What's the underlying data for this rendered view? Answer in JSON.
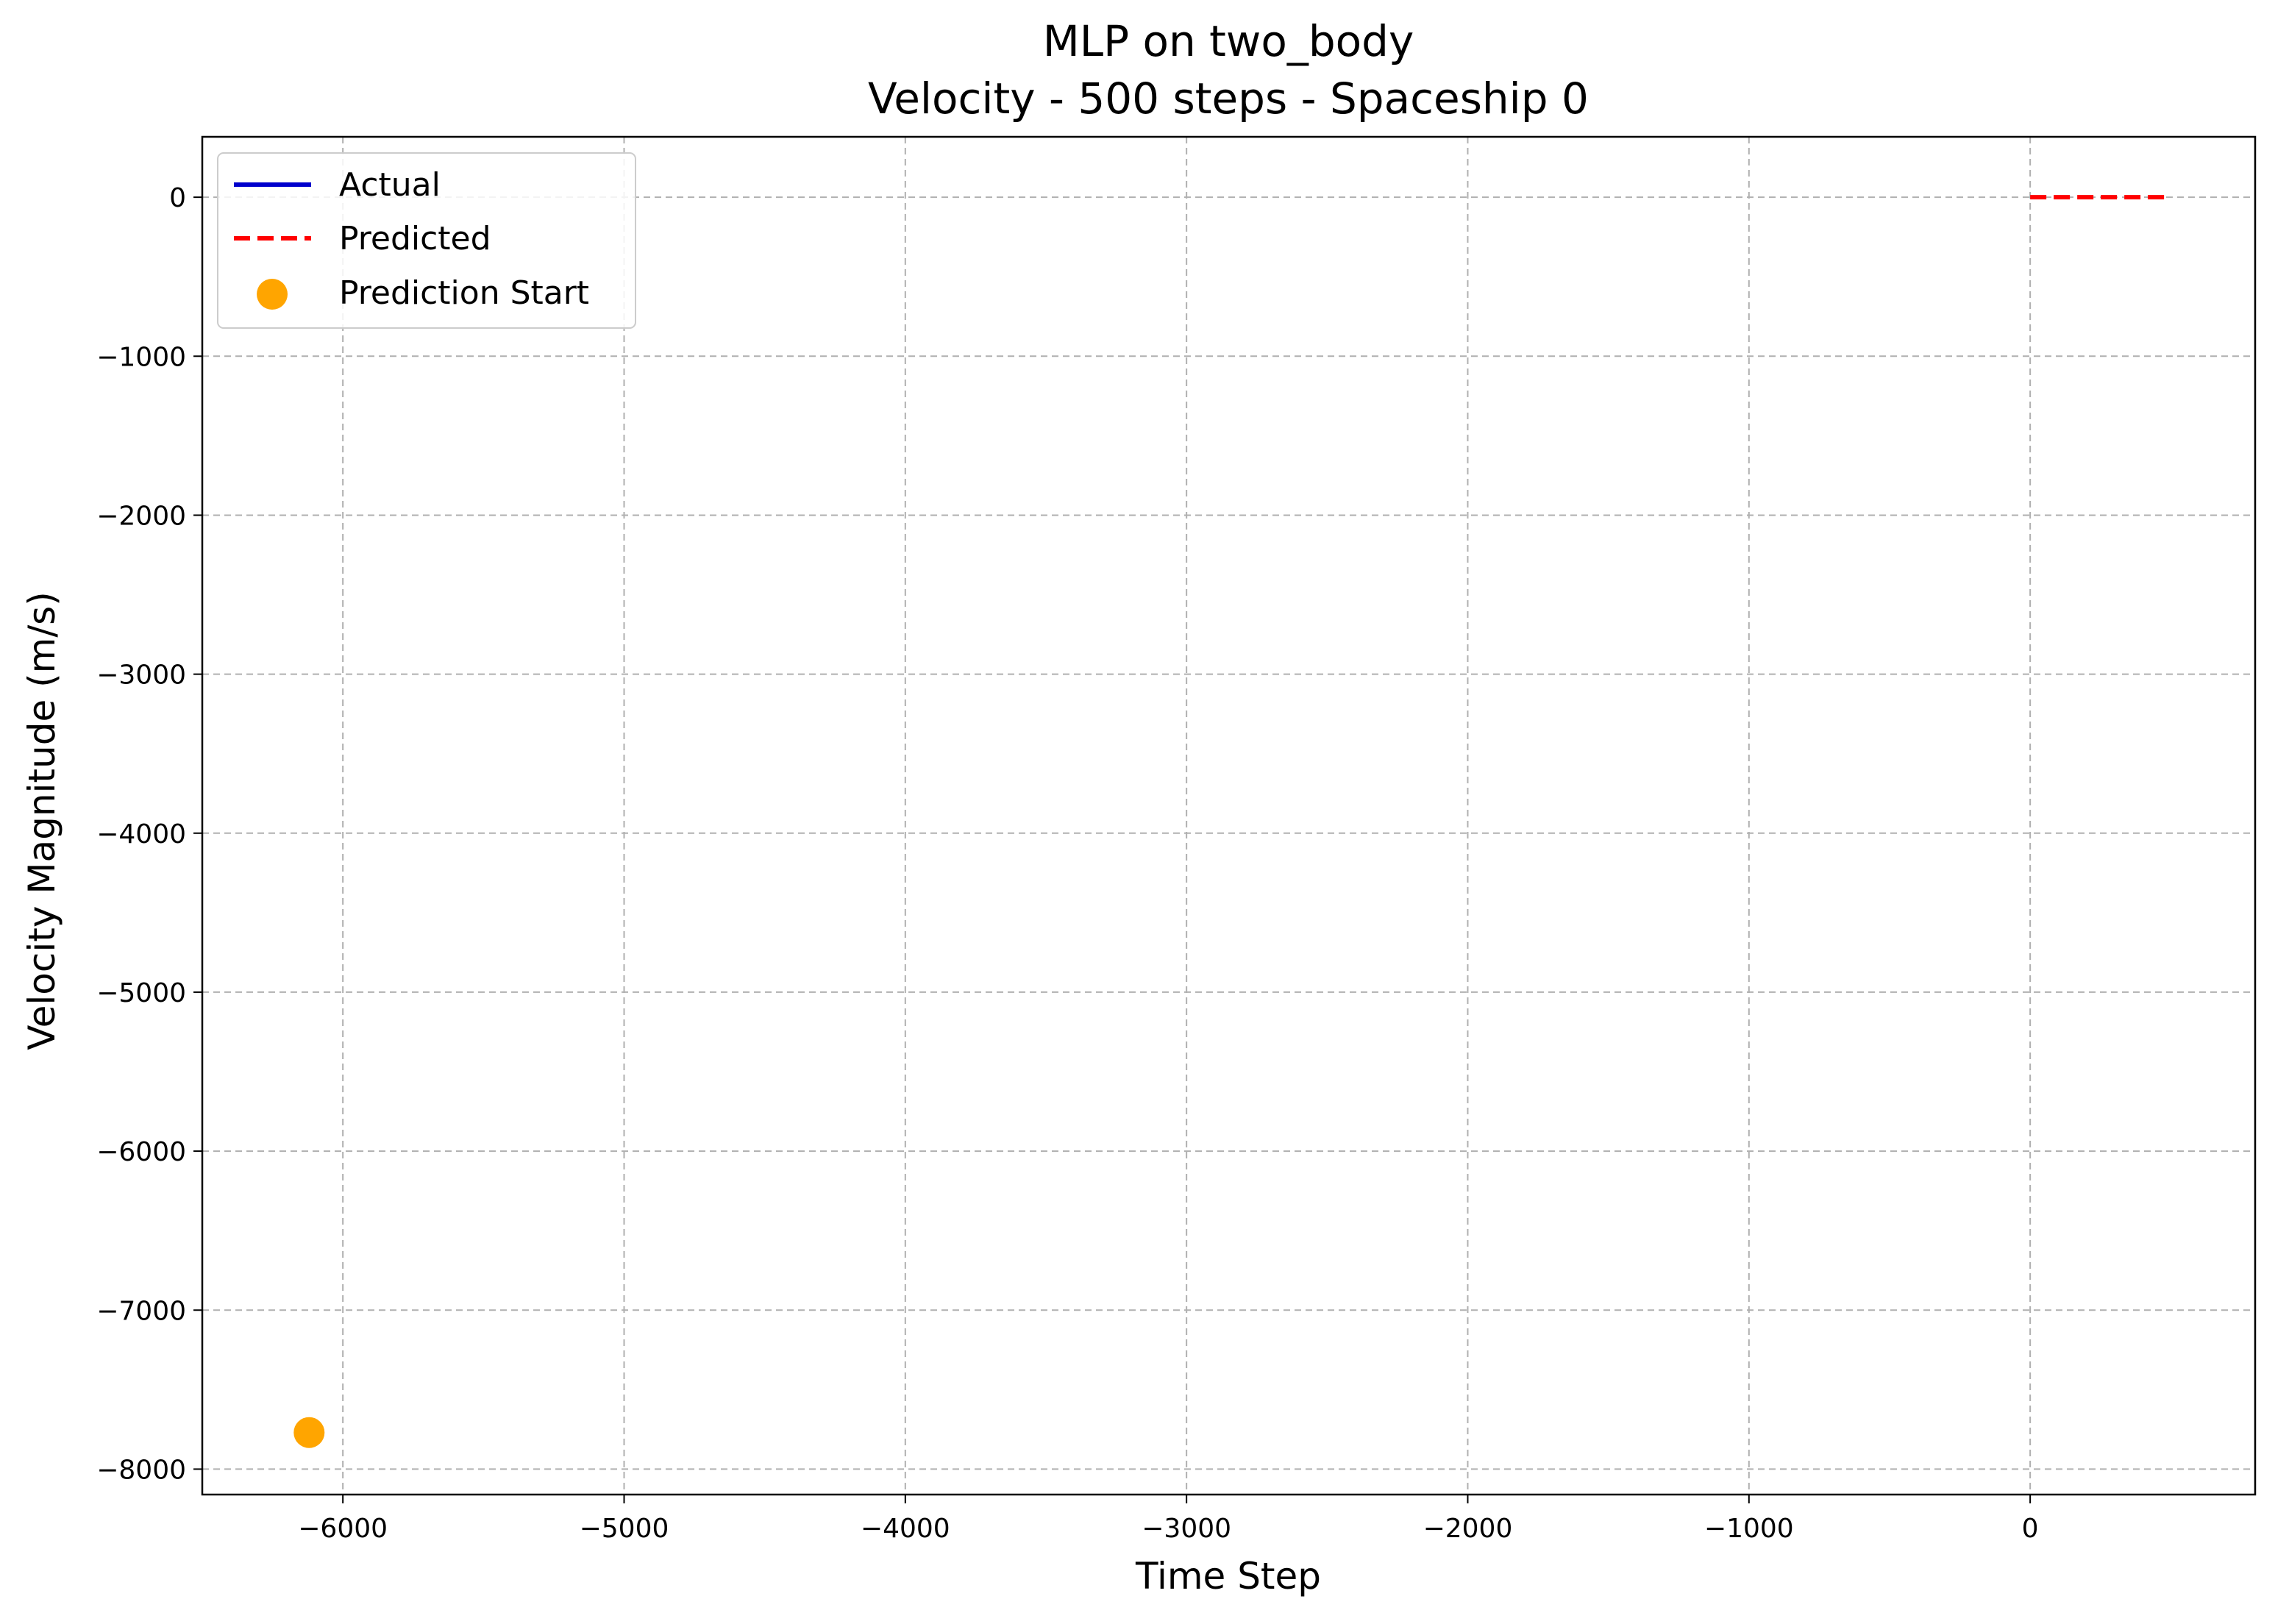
{
  "chart_data": {
    "type": "line",
    "title": "MLP on two_body",
    "subtitle": "Velocity - 500 steps - Spaceship 0",
    "xlabel": "Time Step",
    "ylabel": "Velocity Magnitude (m/s)",
    "xlim": [
      -6500,
      800
    ],
    "ylim": [
      -8160,
      380
    ],
    "xticks": [
      -6000,
      -5000,
      -4000,
      -3000,
      -2000,
      -1000,
      0
    ],
    "xtick_labels": [
      "−6000",
      "−5000",
      "−4000",
      "−3000",
      "−2000",
      "−1000",
      "0"
    ],
    "yticks": [
      0,
      -1000,
      -2000,
      -3000,
      -4000,
      -5000,
      -6000,
      -7000,
      -8000
    ],
    "ytick_labels": [
      "0",
      "−1000",
      "−2000",
      "−3000",
      "−4000",
      "−5000",
      "−6000",
      "−7000",
      "−8000"
    ],
    "grid": true,
    "legend_position": "top-left",
    "series": [
      {
        "name": "Actual",
        "kind": "line",
        "style": "solid",
        "color": "#0000cc",
        "x": [],
        "y": []
      },
      {
        "name": "Predicted",
        "kind": "line",
        "style": "dashed",
        "color": "#ff0000",
        "x": [
          0,
          500
        ],
        "y": [
          0,
          0
        ]
      },
      {
        "name": "Prediction Start",
        "kind": "scatter",
        "color": "#ffa500",
        "x": [
          -6120
        ],
        "y": [
          -7770
        ]
      }
    ]
  }
}
